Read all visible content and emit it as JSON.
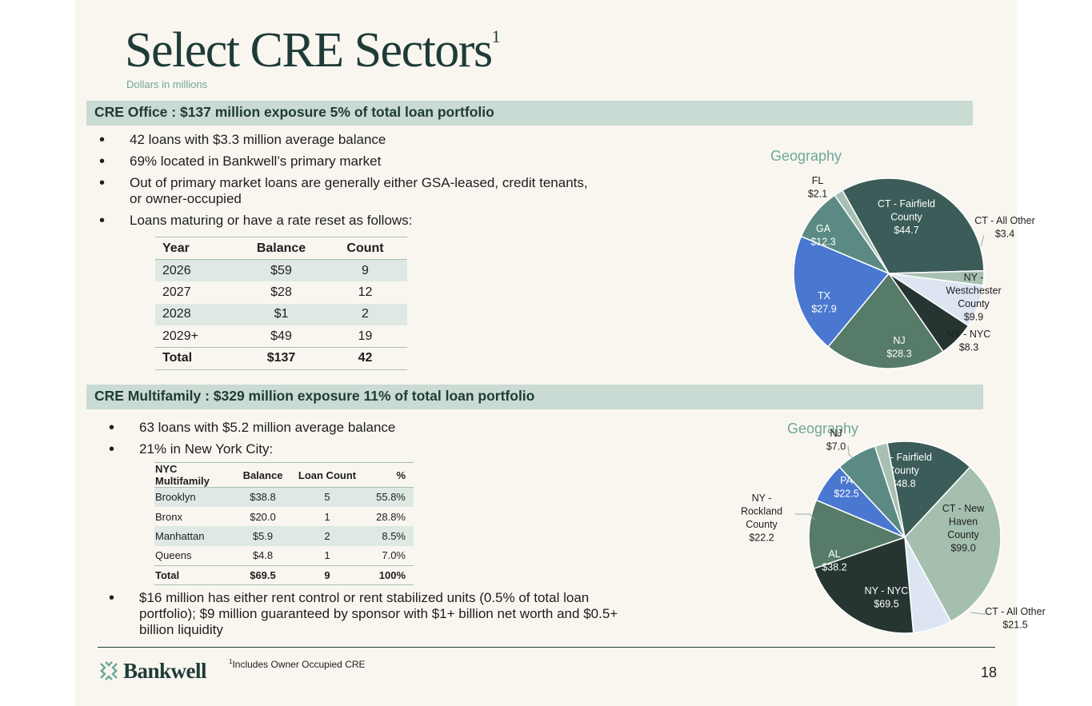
{
  "title": "Select CRE Sectors",
  "title_sup": "1",
  "subtitle": "Dollars in millions",
  "office": {
    "header": "CRE Office : $137 million exposure 5% of total loan portfolio",
    "bullets": [
      "42 loans with $3.3 million average balance",
      "69% located in Bankwell’s primary market",
      "Out of primary market loans are generally either GSA-leased, credit tenants,",
      "or owner-occupied",
      "Loans maturing or have a rate reset as follows:"
    ],
    "table": {
      "headers": [
        "Year",
        "Balance",
        "Count"
      ],
      "rows": [
        [
          "2026",
          "$59",
          "9"
        ],
        [
          "2027",
          "$28",
          "12"
        ],
        [
          "2028",
          "$1",
          "2"
        ],
        [
          "2029+",
          "$49",
          "19"
        ]
      ],
      "total": [
        "Total",
        "$137",
        "42"
      ]
    },
    "geo_title": "Geography"
  },
  "multifamily": {
    "header": "CRE Multifamily : $329 million exposure 11% of total loan portfolio",
    "bullets": [
      "63 loans with $5.2 million average balance",
      "21% in New York City:"
    ],
    "table": {
      "headers": [
        "NYC Multifamily",
        "Balance",
        "Loan Count",
        "%"
      ],
      "rows": [
        [
          "Brooklyn",
          "$38.8",
          "5",
          "55.8%"
        ],
        [
          "Bronx",
          "$20.0",
          "1",
          "28.8%"
        ],
        [
          "Manhattan",
          "$5.9",
          "2",
          "8.5%"
        ],
        [
          "Queens",
          "$4.8",
          "1",
          "7.0%"
        ]
      ],
      "total": [
        "Total",
        "$69.5",
        "9",
        "100%"
      ]
    },
    "bullet_bottom": [
      "$16 million has either rent control or rent stabilized units (0.5% of total loan",
      "portfolio); $9 million guaranteed by sponsor with $1+ billion net worth and $0.5+",
      "billion liquidity"
    ],
    "geo_title": "Geography"
  },
  "footer": {
    "logo_text": "Bankwell",
    "footnote_sup": "1",
    "footnote": "Includes Owner Occupied CRE",
    "page_number": "18"
  },
  "chart_data": [
    {
      "type": "pie",
      "title": "Geography",
      "slices": [
        {
          "label": "CT - Fairfield County",
          "value": 44.7,
          "color": "#3b5c58"
        },
        {
          "label": "CT - All Other",
          "value": 3.4,
          "color": "#a8c0b2"
        },
        {
          "label": "NY - Westchester County",
          "value": 9.9,
          "color": "#dde5f2"
        },
        {
          "label": "NY - NYC",
          "value": 8.3,
          "color": "#263532"
        },
        {
          "label": "NJ",
          "value": 28.3,
          "color": "#567b68"
        },
        {
          "label": "TX",
          "value": 27.9,
          "color": "#4a78d0"
        },
        {
          "label": "GA",
          "value": 12.3,
          "color": "#5a8a83"
        },
        {
          "label": "FL",
          "value": 2.1,
          "color": "#a8c0b2"
        }
      ]
    },
    {
      "type": "pie",
      "title": "Geography",
      "slices": [
        {
          "label": "CT - Fairfield County",
          "value": 48.8,
          "color": "#3b5c58"
        },
        {
          "label": "CT - New Haven County",
          "value": 99.0,
          "color": "#a4bfae"
        },
        {
          "label": "CT - All Other",
          "value": 21.5,
          "color": "#dde5f2"
        },
        {
          "label": "NY - NYC",
          "value": 69.5,
          "color": "#263532"
        },
        {
          "label": "AL",
          "value": 38.2,
          "color": "#567b68"
        },
        {
          "label": "NY - Rockland County",
          "value": 22.2,
          "color": "#4a78d0"
        },
        {
          "label": "PA",
          "value": 22.5,
          "color": "#5a8a83"
        },
        {
          "label": "NJ",
          "value": 7.0,
          "color": "#a8c0b2"
        }
      ]
    }
  ]
}
